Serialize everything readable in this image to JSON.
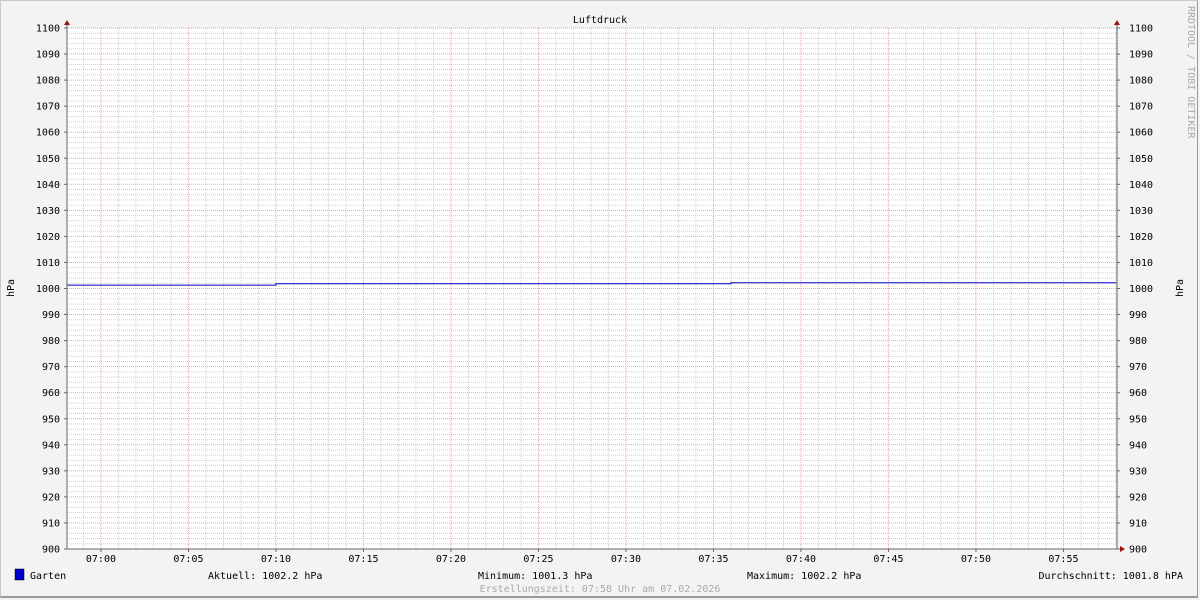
{
  "chart_data": {
    "type": "line",
    "title": "Luftdruck",
    "ylabel": "hPa",
    "ylabel_right": "hPa",
    "ylim": [
      900,
      1100
    ],
    "yticks": [
      900,
      910,
      920,
      930,
      940,
      950,
      960,
      970,
      980,
      990,
      1000,
      1010,
      1020,
      1030,
      1040,
      1050,
      1060,
      1070,
      1080,
      1090,
      1100
    ],
    "xlim": [
      "06:58",
      "07:58"
    ],
    "xticks": [
      "07:00",
      "07:05",
      "07:10",
      "07:15",
      "07:20",
      "07:25",
      "07:30",
      "07:35",
      "07:40",
      "07:45",
      "07:50",
      "07:55"
    ],
    "grid": true,
    "series": [
      {
        "name": "Garten",
        "color": "#0000cc",
        "points": [
          [
            "06:58",
            1001.3
          ],
          [
            "07:10",
            1001.3
          ],
          [
            "07:10",
            1001.8
          ],
          [
            "07:36",
            1001.8
          ],
          [
            "07:36",
            1002.2
          ],
          [
            "07:58",
            1002.2
          ]
        ]
      }
    ],
    "legend": {
      "placement": "bottom-left",
      "name": "Garten",
      "current": "Aktuell: 1002.2 hPa",
      "minimum": "Minimum: 1001.3 hPa",
      "maximum": "Maximum: 1002.2 hPa",
      "average": "Durchschnitt: 1001.8 hPA"
    },
    "footer": "Erstellungszeit: 07:58 Uhr am 07.02.2026",
    "watermark": "RRDTOOL / TOBI OETIKER",
    "colors": {
      "major_grid": "#f0a0a0",
      "minor_grid": "#d0d0d0",
      "axis": "#666666",
      "arrow": "#991111",
      "background": "#f3f3f3",
      "canvas": "#ffffff"
    }
  }
}
